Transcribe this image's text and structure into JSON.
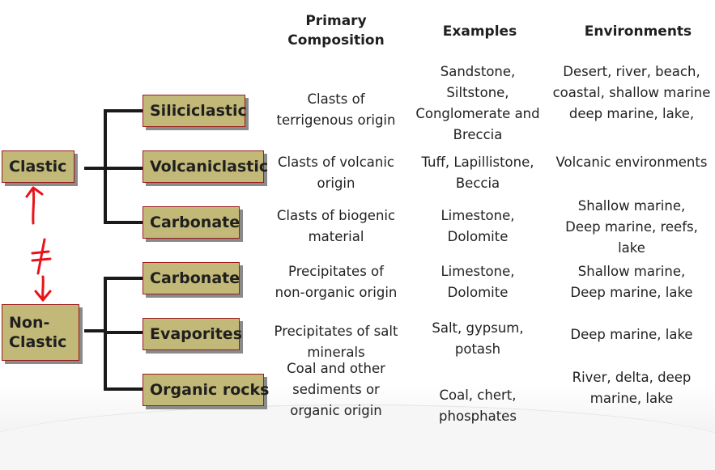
{
  "headers": {
    "composition": [
      "Primary",
      "Composition"
    ],
    "examples": "Examples",
    "environments": "Environments"
  },
  "roots": {
    "clastic": "Clastic",
    "nonclastic": [
      "Non-",
      "Clastic"
    ]
  },
  "annotation": {
    "symbol": "≠",
    "color": "#e8141b"
  },
  "rows": [
    {
      "type": "Siliciclastic",
      "composition": [
        "Clasts of",
        "terrigenous origin"
      ],
      "examples": [
        "Sandstone,",
        "Siltstone,",
        "Conglomerate and",
        "Breccia"
      ],
      "environments": [
        "Desert, river, beach,",
        "coastal, shallow marine",
        "deep marine, lake,"
      ]
    },
    {
      "type": "Volcaniclastic",
      "composition": [
        "Clasts of volcanic",
        "origin"
      ],
      "examples": [
        "Tuff, Lapillistone,",
        "Beccia"
      ],
      "environments": [
        "Volcanic environments"
      ]
    },
    {
      "type": "Carbonate",
      "composition": [
        "Clasts of biogenic",
        "material"
      ],
      "examples": [
        "Limestone,",
        "Dolomite"
      ],
      "environments": [
        "Shallow marine,",
        "Deep marine, reefs,",
        "lake"
      ]
    },
    {
      "type": "Carbonate",
      "composition": [
        "Precipitates of",
        "non-organic origin"
      ],
      "examples": [
        "Limestone,",
        "Dolomite"
      ],
      "environments": [
        "Shallow marine,",
        "Deep marine, lake"
      ]
    },
    {
      "type": "Evaporites",
      "composition": [
        "Precipitates of salt",
        "minerals"
      ],
      "examples": [
        "Salt, gypsum,",
        "potash"
      ],
      "environments": [
        "Deep marine, lake"
      ]
    },
    {
      "type": "Organic rocks",
      "composition": [
        "Coal and other",
        "sediments or",
        "organic origin"
      ],
      "examples": [
        "Coal, chert,",
        "phosphates"
      ],
      "environments": [
        "River, delta, deep",
        "marine, lake"
      ]
    }
  ],
  "colors": {
    "box_fill": "#c2b978",
    "box_border": "#9a1c1c",
    "connector": "#1a1a1a"
  }
}
